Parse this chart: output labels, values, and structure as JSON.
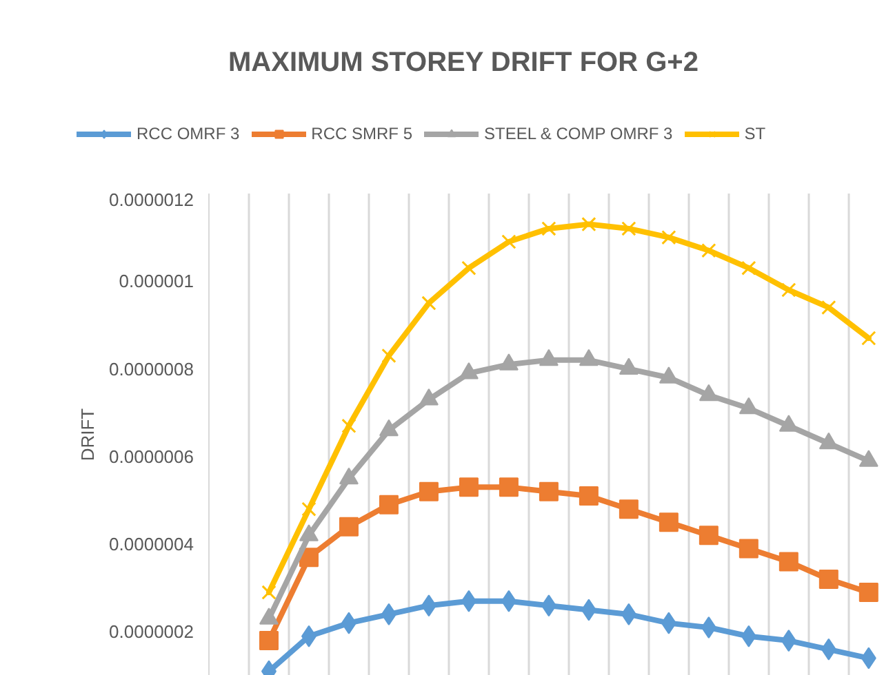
{
  "chart_data": {
    "type": "line",
    "title": "MAXIMUM STOREY DRIFT FOR G+2",
    "ylabel": "DRIFT",
    "categories": [
      null,
      null,
      null,
      null,
      null,
      null,
      null,
      null,
      null,
      null,
      null,
      null,
      null,
      null,
      null,
      null,
      null
    ],
    "series": [
      {
        "name": "RCC OMRF 3",
        "color": "#5b9bd5",
        "marker": "diamond",
        "values": [
          null,
          1.1e-07,
          1.9e-07,
          2.2e-07,
          2.4e-07,
          2.6e-07,
          2.7e-07,
          2.7e-07,
          2.6e-07,
          2.5e-07,
          2.4e-07,
          2.2e-07,
          2.1e-07,
          1.9e-07,
          1.8e-07,
          1.6e-07,
          1.4e-07
        ]
      },
      {
        "name": "RCC SMRF 5",
        "color": "#ed7d31",
        "marker": "square",
        "values": [
          null,
          1.8e-07,
          3.7e-07,
          4.4e-07,
          4.9e-07,
          5.2e-07,
          5.3e-07,
          5.3e-07,
          5.2e-07,
          5.1e-07,
          4.8e-07,
          4.5e-07,
          4.2e-07,
          3.9e-07,
          3.6e-07,
          3.2e-07,
          2.9e-07
        ]
      },
      {
        "name": "STEEL & COMP OMRF 3",
        "color": "#a5a5a5",
        "marker": "triangle",
        "values": [
          null,
          2.3e-07,
          4.2e-07,
          5.5e-07,
          6.6e-07,
          7.3e-07,
          7.9e-07,
          8.1e-07,
          8.2e-07,
          8.2e-07,
          8e-07,
          7.8e-07,
          7.4e-07,
          7.1e-07,
          6.7e-07,
          6.3e-07,
          5.9e-07
        ]
      },
      {
        "name": "ST",
        "color": "#ffc000",
        "marker": "cross",
        "values": [
          null,
          2.9e-07,
          4.8e-07,
          6.7e-07,
          8.3e-07,
          9.5e-07,
          1.03e-06,
          1.09e-06,
          1.12e-06,
          1.13e-06,
          1.12e-06,
          1.1e-06,
          1.07e-06,
          1.03e-06,
          9.8e-07,
          9.4e-07,
          8.7e-07
        ]
      }
    ],
    "ylim": [
      1e-07,
      1.2e-06
    ],
    "yticks": [
      {
        "value": 2e-07,
        "label": "0.0000002"
      },
      {
        "value": 4e-07,
        "label": "0.0000004"
      },
      {
        "value": 6e-07,
        "label": "0.0000006"
      },
      {
        "value": 8e-07,
        "label": "0.0000008"
      },
      {
        "value": 1e-06,
        "label": "0.000001"
      },
      {
        "value": 1.2e-06,
        "label": "0.0000012"
      }
    ],
    "grid": "x",
    "legend": "top",
    "tick_labels": "y"
  }
}
